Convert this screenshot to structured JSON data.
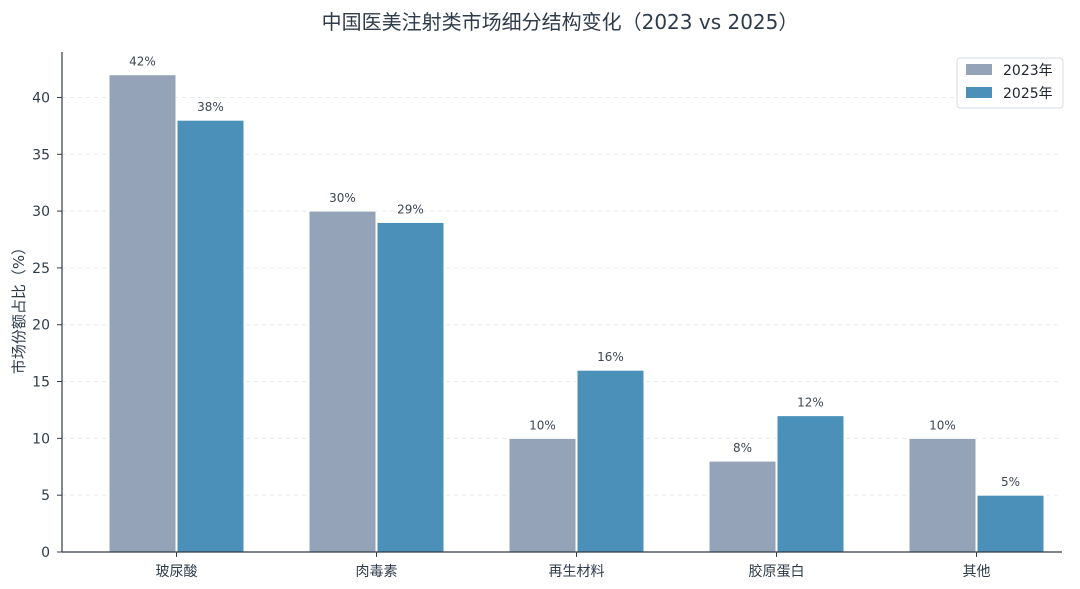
{
  "chart_data": {
    "type": "bar",
    "title": "中国医美注射类市场细分结构变化（2023 vs 2025）",
    "xlabel": "",
    "ylabel": "市场份额占比（%）",
    "categories": [
      "玻尿酸",
      "肉毒素",
      "再生材料",
      "胶原蛋白",
      "其他"
    ],
    "series": [
      {
        "name": "2023年",
        "values": [
          42,
          30,
          10,
          8,
          10
        ],
        "labels": [
          "42%",
          "30%",
          "10%",
          "8%",
          "10%"
        ],
        "color": "#94a3b8"
      },
      {
        "name": "2025年",
        "values": [
          38,
          29,
          16,
          12,
          5
        ],
        "labels": [
          "38%",
          "29%",
          "16%",
          "12%",
          "5%"
        ],
        "color": "#4a90b8"
      }
    ],
    "ylim": [
      0,
      44
    ],
    "yticks": [
      0,
      5,
      10,
      15,
      20,
      25,
      30,
      35,
      40
    ],
    "grid": true,
    "legend_position": "top-right"
  }
}
